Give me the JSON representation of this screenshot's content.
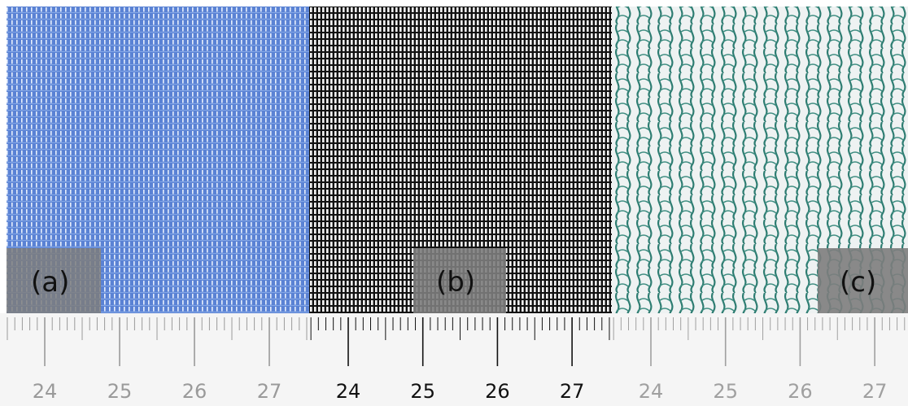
{
  "panels": [
    {
      "label": "(a)",
      "ruler": [
        24,
        25,
        26,
        27
      ]
    },
    {
      "label": "(b)",
      "ruler": [
        24,
        25,
        26,
        27
      ]
    },
    {
      "label": "(c)",
      "ruler": [
        24,
        25,
        26,
        27
      ]
    }
  ]
}
